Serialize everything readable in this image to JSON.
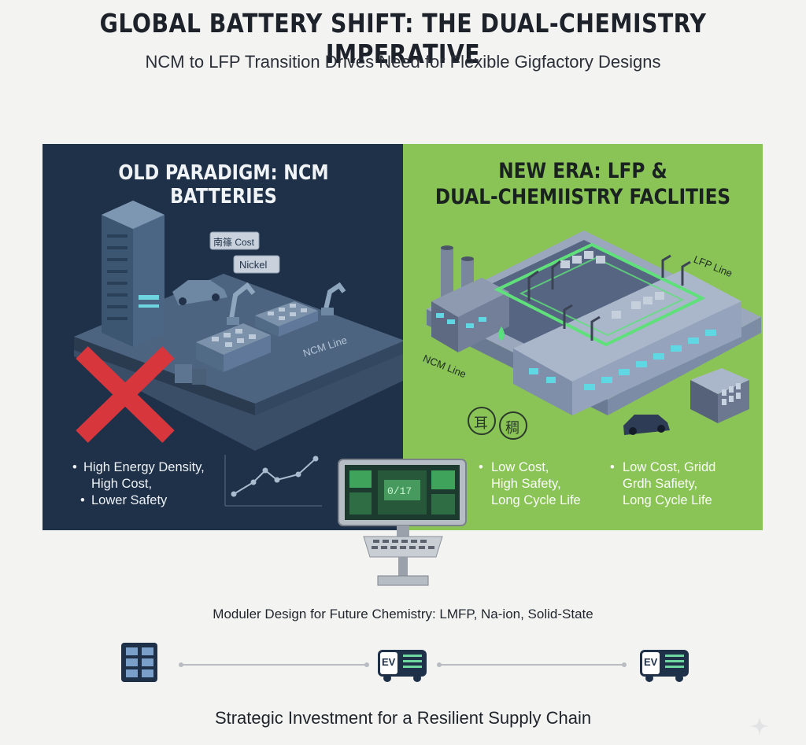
{
  "title": "GLOBAL BATTERY SHIFT: THE DUAL-CHEMISTRY IMPERATIVE",
  "subtitle": "NCM to LFP Transition Drives Need for Flexible Gigfactory Designs",
  "left_panel": {
    "title": "OLD PARADIGM: NCM BATTERIES",
    "tags": [
      "南篠 Cost",
      "Nickel"
    ],
    "line_label": "NCM Line",
    "bullets": {
      "line1": "High Energy Density,",
      "line2": "High Cost,",
      "line3": "Lower Safety"
    }
  },
  "right_panel": {
    "title_line1": "NEW ERA: LFP &",
    "title_line2": "DUAL-CHEMIISTRY FACLITIES",
    "lfp_label": "LFP Line",
    "ncm_label": "NCM Line",
    "seal1": "耳",
    "seal2": "稠",
    "bullets_a": {
      "line1": "Low Cost,",
      "line2": "High Safety,",
      "line3": "Long Cycle Life"
    },
    "bullets_b": {
      "line1": "Low Cost, Gridd",
      "line2": "Grdh Safiety,",
      "line3": "Long Cycle Life"
    }
  },
  "screen_label": "0/17",
  "moduler_text": "Moduler Design for Future Chemistry: LMFP, Na-ion, Solid-State",
  "timeline": {
    "ev_label_1": "EV",
    "ev_label_2": "EV"
  },
  "footer": "Strategic Investment for a Resilient Supply Chain",
  "colors": {
    "left_bg": "#1f3148",
    "right_bg": "#8ac457",
    "cross_red": "#d8363d",
    "page_bg": "#f3f3f2",
    "accent_green": "#5fe07a"
  },
  "icons": [
    "sparkle-icon"
  ]
}
